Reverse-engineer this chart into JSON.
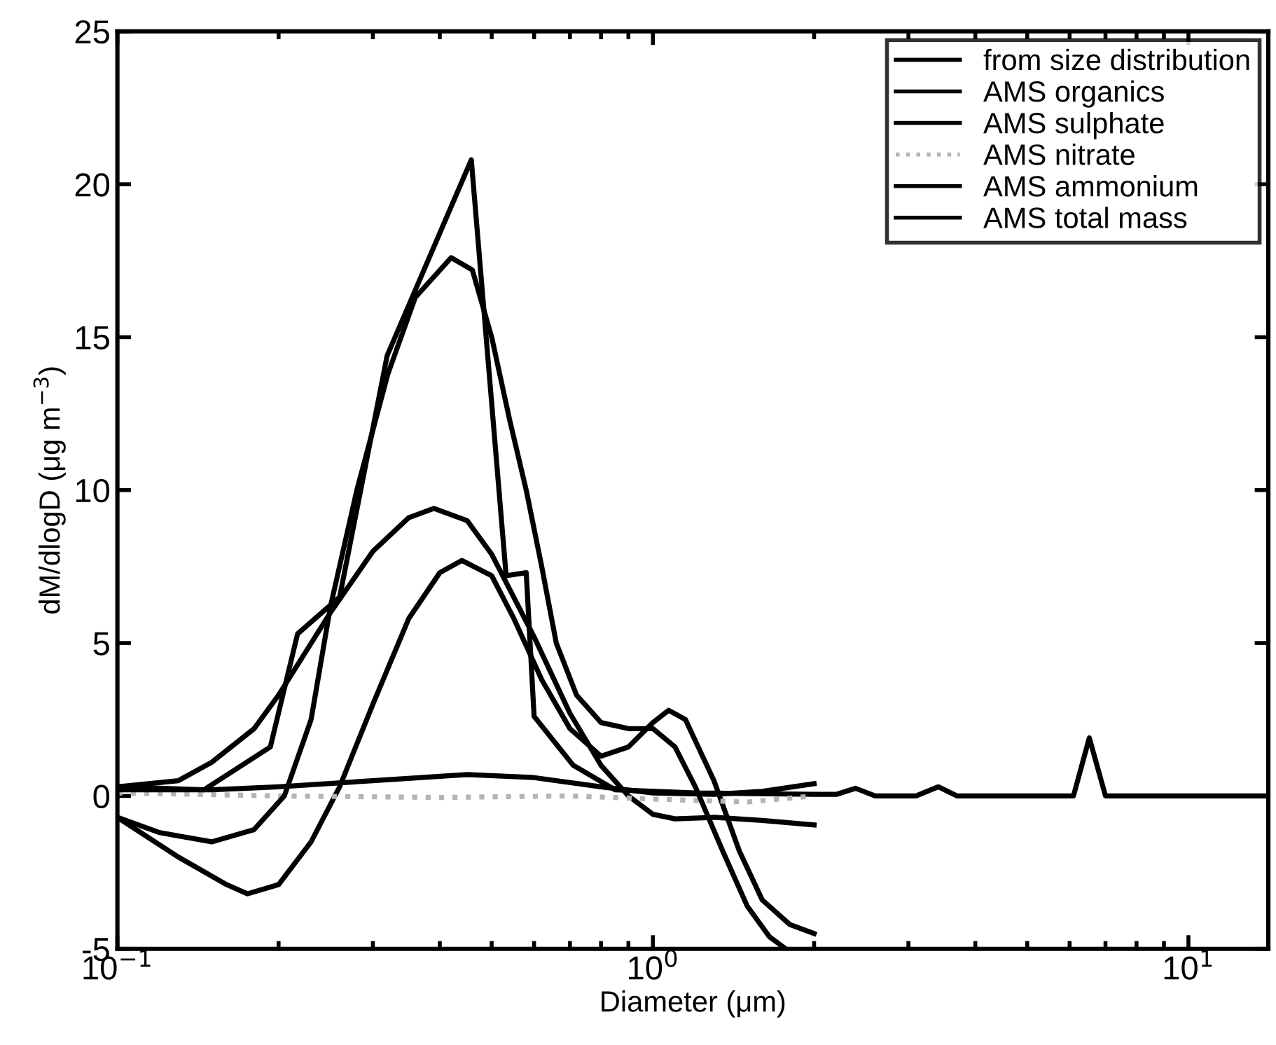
{
  "chart_data": {
    "type": "line",
    "xlabel": "Diameter (μm)",
    "ylabel": "dM/dlogD (μg m$^{−3}$)",
    "log": "x",
    "xlim": [
      0.1,
      14.1
    ],
    "xticks": [
      {
        "value": 0.1,
        "label": "10$^{−1}$"
      },
      {
        "value": 1,
        "label": "10$^{0}$"
      },
      {
        "value": 10,
        "label": "10$^{1}$"
      }
    ],
    "ylim": [
      -5,
      25
    ],
    "yticks": [
      -5,
      0,
      5,
      10,
      15,
      20,
      25
    ],
    "grid": false,
    "legend": "top right",
    "marker": "none",
    "series": [
      {
        "name": "from size distribution",
        "color": "#000000",
        "line_style": "solid",
        "x": [
          0.1,
          0.145,
          0.193,
          0.217,
          0.26,
          0.319,
          0.458,
          0.532,
          0.58,
          0.6,
          0.71,
          0.85,
          1.2,
          2.0,
          2.2,
          2.39,
          2.6,
          3.1,
          3.41,
          3.7,
          6.1,
          6.53,
          7.0,
          14.1
        ],
        "values": [
          0.3,
          0.2,
          1.6,
          5.3,
          6.5,
          14.4,
          20.8,
          7.2,
          7.3,
          2.6,
          1.0,
          0.2,
          0.1,
          0.05,
          0.05,
          0.25,
          0.0,
          0.0,
          0.3,
          0.0,
          0.0,
          1.9,
          0.0,
          0.0
        ]
      },
      {
        "name": "AMS organics",
        "color": "#000000",
        "line_style": "solid",
        "x": [
          0.1,
          0.13,
          0.15,
          0.18,
          0.2,
          0.25,
          0.3,
          0.35,
          0.39,
          0.45,
          0.5,
          0.6,
          0.7,
          0.8,
          0.9,
          1.0,
          1.1,
          1.3,
          1.6,
          2.0
        ],
        "values": [
          0.3,
          0.5,
          1.1,
          2.2,
          3.3,
          6.0,
          8.0,
          9.1,
          9.4,
          9.0,
          7.9,
          5.2,
          2.7,
          1.0,
          0.0,
          -0.6,
          -0.75,
          -0.7,
          -0.8,
          -0.95
        ]
      },
      {
        "name": "AMS sulphate",
        "color": "#000000",
        "line_style": "solid",
        "x": [
          0.1,
          0.13,
          0.16,
          0.175,
          0.2,
          0.23,
          0.26,
          0.3,
          0.35,
          0.4,
          0.44,
          0.5,
          0.55,
          0.62,
          0.7,
          0.8,
          0.9,
          1.0,
          1.07,
          1.15,
          1.3,
          1.45,
          1.6,
          1.8,
          2.0
        ],
        "values": [
          -0.7,
          -2.0,
          -2.9,
          -3.2,
          -2.9,
          -1.5,
          0.3,
          3.0,
          5.8,
          7.3,
          7.7,
          7.2,
          5.8,
          3.8,
          2.2,
          1.3,
          1.6,
          2.4,
          2.8,
          2.5,
          0.5,
          -1.8,
          -3.4,
          -4.2,
          -4.5
        ]
      },
      {
        "name": "AMS nitrate",
        "color": "#b4b4b4",
        "line_style": "dotted",
        "x": [
          0.1,
          0.2,
          0.4,
          0.7,
          1.0,
          1.5,
          2.0
        ],
        "values": [
          0.1,
          0.0,
          -0.05,
          0.0,
          -0.1,
          -0.2,
          0.0
        ]
      },
      {
        "name": "AMS ammonium",
        "color": "#000000",
        "line_style": "solid",
        "x": [
          0.1,
          0.15,
          0.2,
          0.3,
          0.45,
          0.6,
          0.8,
          1.0,
          1.3,
          1.6,
          2.0
        ],
        "values": [
          0.2,
          0.2,
          0.3,
          0.5,
          0.7,
          0.6,
          0.3,
          0.1,
          0.05,
          0.15,
          0.4
        ]
      },
      {
        "name": "AMS total mass",
        "color": "#000000",
        "line_style": "solid",
        "x": [
          0.1,
          0.12,
          0.15,
          0.18,
          0.205,
          0.23,
          0.25,
          0.28,
          0.32,
          0.36,
          0.42,
          0.46,
          0.5,
          0.54,
          0.58,
          0.62,
          0.66,
          0.72,
          0.8,
          0.9,
          1.0,
          1.1,
          1.2,
          1.35,
          1.5,
          1.65,
          1.77
        ],
        "values": [
          -0.7,
          -1.2,
          -1.5,
          -1.1,
          0.0,
          2.5,
          6.2,
          10.0,
          13.8,
          16.3,
          17.6,
          17.2,
          15.0,
          12.3,
          10.0,
          7.5,
          5.0,
          3.3,
          2.4,
          2.2,
          2.2,
          1.6,
          0.3,
          -1.8,
          -3.6,
          -4.6,
          -5.0
        ]
      }
    ]
  }
}
